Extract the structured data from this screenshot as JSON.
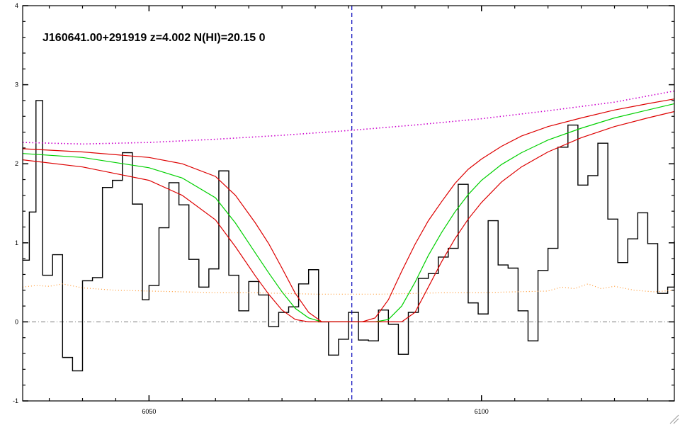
{
  "chart_data": {
    "type": "line",
    "title": "J160641.00+291919 z=4.002 N(HI)=20.15 0",
    "xlabel": "",
    "ylabel": "",
    "xlim": [
      6031,
      6129
    ],
    "ylim": [
      -1,
      4
    ],
    "x_ticks": [
      6050,
      6100
    ],
    "x_tick_labels": [
      "6050",
      "6100"
    ],
    "y_ticks": [
      -1,
      0,
      1,
      2,
      3,
      4
    ],
    "y_tick_labels": [
      "-1",
      "0",
      "1",
      "2",
      "3",
      "4"
    ],
    "vertical_line_x": 6080.5,
    "zero_line_y": 0,
    "grid": false,
    "colors": {
      "flux": "#000000",
      "model": "#00d000",
      "model_bounds": "#dd0000",
      "continuum": "#cc00cc",
      "error": "#ff9933",
      "center_line": "#0000bb",
      "zero_line": "#777777"
    },
    "series": [
      {
        "style": "histogram",
        "x": [
          6031,
          6032,
          6033,
          6034,
          6035.5,
          6037,
          6038.5,
          6040,
          6041.5,
          6043,
          6044.5,
          6046,
          6047.5,
          6049,
          6050,
          6051.5,
          6053,
          6054.5,
          6056,
          6057.5,
          6059,
          6060.5,
          6062,
          6063.5,
          6065,
          6066.5,
          6068,
          6069.5,
          6071,
          6072.5,
          6074,
          6075.5,
          6077,
          6078.5,
          6080,
          6081.5,
          6083,
          6084.5,
          6086,
          6087.5,
          6089,
          6090.5,
          6092,
          6093.5,
          6095,
          6096.5,
          6098,
          6099.5,
          6101,
          6102.5,
          6104,
          6105.5,
          6107,
          6108.5,
          6110,
          6111.5,
          6113,
          6114.5,
          6116,
          6117.5,
          6119,
          6120.5,
          6122,
          6123.5,
          6125,
          6126.5,
          6128,
          6129
        ],
        "y": [
          0.78,
          1.39,
          2.8,
          0.59,
          0.85,
          -0.45,
          -0.62,
          0.52,
          0.56,
          1.7,
          1.79,
          2.14,
          1.49,
          0.28,
          0.46,
          1.19,
          1.76,
          1.48,
          0.79,
          0.44,
          0.67,
          1.91,
          0.59,
          0.14,
          0.51,
          0.34,
          -0.06,
          0.12,
          0.19,
          0.48,
          0.66,
          0.0,
          -0.42,
          -0.22,
          0.12,
          -0.23,
          -0.24,
          0.15,
          -0.03,
          -0.41,
          0.12,
          0.55,
          0.61,
          0.82,
          0.93,
          1.74,
          0.24,
          0.1,
          1.28,
          0.72,
          0.68,
          0.14,
          -0.24,
          0.65,
          0.93,
          2.21,
          2.49,
          1.73,
          1.85,
          2.26,
          1.3,
          0.75,
          1.05,
          1.38,
          0.99,
          0.36,
          0.44,
          1.02
        ]
      },
      {
        "style": "smooth",
        "x": [
          6031,
          6040,
          6050,
          6055,
          6060,
          6063,
          6066,
          6068,
          6070,
          6072,
          6074,
          6076,
          6078,
          6080,
          6082,
          6084,
          6086,
          6088,
          6090,
          6092,
          6094,
          6096,
          6098,
          6100,
          6103,
          6106,
          6110,
          6115,
          6120,
          6125,
          6129
        ],
        "y": [
          2.13,
          2.08,
          1.95,
          1.82,
          1.57,
          1.25,
          0.87,
          0.62,
          0.38,
          0.17,
          0.05,
          0.0,
          0.0,
          0.0,
          0.0,
          0.0,
          0.03,
          0.2,
          0.5,
          0.84,
          1.13,
          1.39,
          1.61,
          1.79,
          1.99,
          2.14,
          2.3,
          2.45,
          2.58,
          2.68,
          2.76
        ]
      },
      {
        "style": "smooth",
        "x": [
          6031,
          6040,
          6050,
          6055,
          6060,
          6063,
          6066,
          6068,
          6070,
          6072,
          6074,
          6076,
          6078,
          6080,
          6082,
          6084,
          6086,
          6088,
          6090,
          6092,
          6094,
          6096,
          6098,
          6100,
          6103,
          6106,
          6110,
          6115,
          6120,
          6125,
          6129
        ],
        "y": [
          2.19,
          2.15,
          2.08,
          2.0,
          1.84,
          1.6,
          1.25,
          0.99,
          0.68,
          0.36,
          0.12,
          0.0,
          0.0,
          0.0,
          0.0,
          0.05,
          0.28,
          0.64,
          0.98,
          1.28,
          1.52,
          1.75,
          1.93,
          2.06,
          2.22,
          2.35,
          2.47,
          2.58,
          2.68,
          2.76,
          2.82
        ]
      },
      {
        "style": "smooth",
        "x": [
          6031,
          6040,
          6050,
          6055,
          6060,
          6063,
          6066,
          6068,
          6070,
          6072,
          6074,
          6076,
          6078,
          6080,
          6082,
          6084,
          6086,
          6088,
          6090,
          6092,
          6094,
          6096,
          6098,
          6100,
          6103,
          6106,
          6110,
          6115,
          6120,
          6125,
          6129
        ],
        "y": [
          2.05,
          1.96,
          1.79,
          1.6,
          1.29,
          0.95,
          0.58,
          0.35,
          0.15,
          0.03,
          0.0,
          0.0,
          0.0,
          0.0,
          0.0,
          0.0,
          0.0,
          0.0,
          0.12,
          0.44,
          0.76,
          1.05,
          1.3,
          1.51,
          1.77,
          1.96,
          2.15,
          2.33,
          2.47,
          2.58,
          2.66
        ]
      },
      {
        "style": "dotted",
        "x": [
          6031,
          6040,
          6050,
          6060,
          6070,
          6080,
          6090,
          6100,
          6110,
          6120,
          6129
        ],
        "y": [
          2.27,
          2.25,
          2.27,
          2.31,
          2.36,
          2.42,
          2.49,
          2.57,
          2.67,
          2.78,
          2.92
        ]
      },
      {
        "style": "dotted",
        "x": [
          6031,
          6033,
          6035,
          6037,
          6040,
          6045,
          6050,
          6055,
          6060,
          6065,
          6070,
          6075,
          6080,
          6085,
          6090,
          6095,
          6100,
          6105,
          6110,
          6112,
          6114,
          6116,
          6118,
          6120,
          6123,
          6126,
          6129
        ],
        "y": [
          0.44,
          0.46,
          0.45,
          0.48,
          0.43,
          0.4,
          0.39,
          0.38,
          0.37,
          0.37,
          0.36,
          0.35,
          0.35,
          0.35,
          0.36,
          0.37,
          0.37,
          0.38,
          0.39,
          0.44,
          0.42,
          0.48,
          0.42,
          0.45,
          0.4,
          0.38,
          0.4
        ]
      }
    ]
  }
}
